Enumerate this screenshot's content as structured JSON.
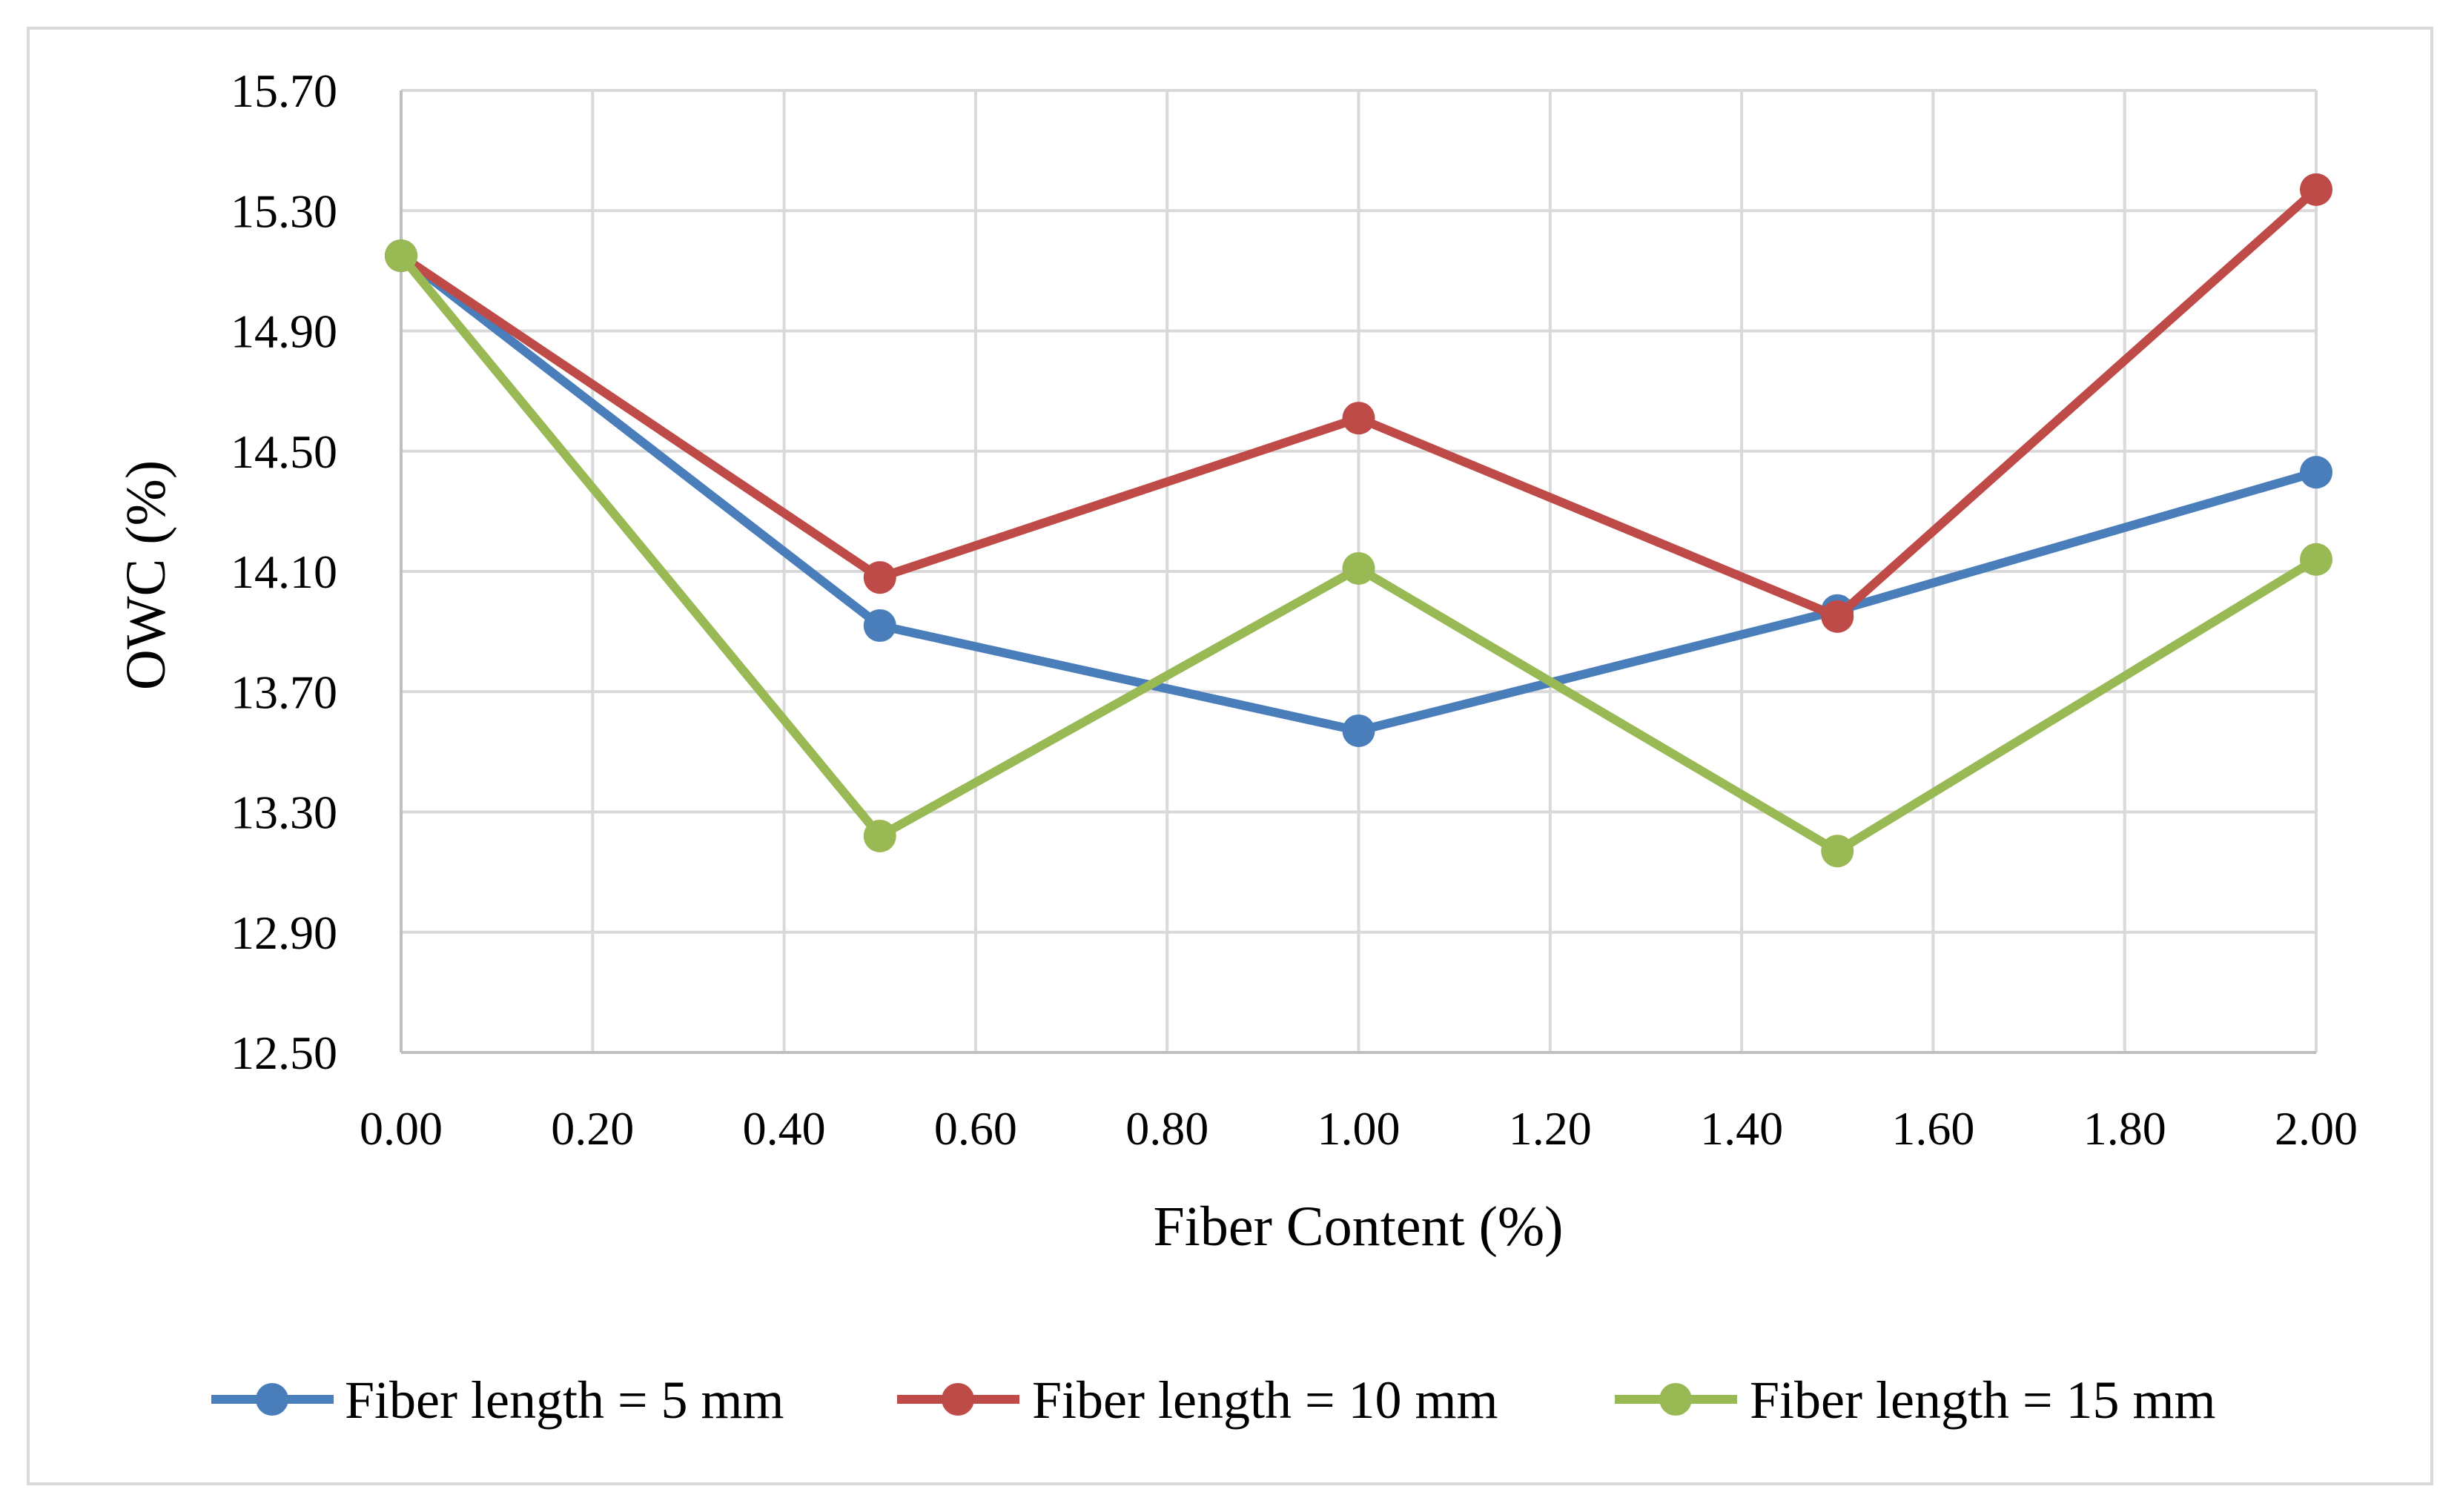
{
  "chart_data": {
    "type": "line",
    "title": "",
    "xlabel": "Fiber Content (%)",
    "ylabel": "OWC (%)",
    "xlim": [
      0,
      2
    ],
    "ylim": [
      12.5,
      15.7
    ],
    "x_ticks": [
      "0.00",
      "0.20",
      "0.40",
      "0.60",
      "0.80",
      "1.00",
      "1.20",
      "1.40",
      "1.60",
      "1.80",
      "2.00"
    ],
    "y_ticks": [
      "12.50",
      "12.90",
      "13.30",
      "13.70",
      "14.10",
      "14.50",
      "14.90",
      "15.30",
      "15.70"
    ],
    "grid": true,
    "legend_position": "bottom",
    "x": [
      0,
      0.5,
      1.0,
      1.5,
      2.0
    ],
    "series": [
      {
        "name": "Fiber length = 5 mm",
        "color": "#4a7ebb",
        "values": [
          15.15,
          13.92,
          13.57,
          13.97,
          14.43
        ]
      },
      {
        "name": "Fiber length = 10 mm",
        "color": "#be4b48",
        "values": [
          15.15,
          14.08,
          14.61,
          13.95,
          15.37
        ]
      },
      {
        "name": "Fiber length = 15 mm",
        "color": "#98b954",
        "values": [
          15.15,
          13.22,
          14.11,
          13.17,
          14.14
        ]
      }
    ]
  }
}
